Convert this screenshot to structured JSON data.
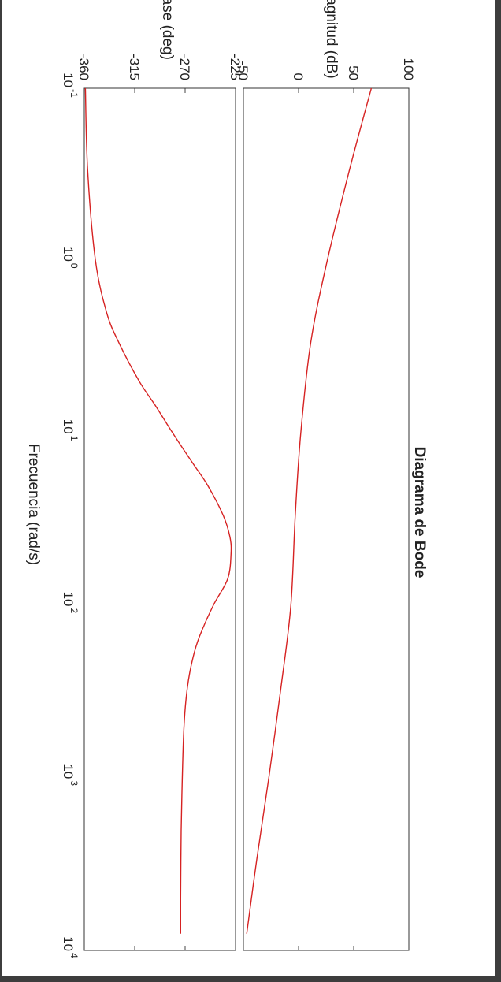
{
  "chart_data": {
    "type": "line",
    "title": "Diagrama de Bode",
    "xlabel": "Frecuencia  (rad/s)",
    "xscale": "log",
    "xlim": [
      0.1,
      10000
    ],
    "xticks": [
      {
        "base": "10",
        "exp": "-1"
      },
      {
        "base": "10",
        "exp": "0"
      },
      {
        "base": "10",
        "exp": "1"
      },
      {
        "base": "10",
        "exp": "2"
      },
      {
        "base": "10",
        "exp": "3"
      },
      {
        "base": "10",
        "exp": "4"
      }
    ],
    "grid": true,
    "line_color": "#d62222",
    "panels": [
      {
        "name": "magnitude",
        "ylabel": "Magnitud (dB)",
        "ylim": [
          -50,
          100
        ],
        "yticks": [
          "-50",
          "0",
          "50",
          "100"
        ],
        "x": [
          0.1,
          0.3,
          1,
          3,
          10,
          30,
          100,
          300,
          1000,
          3000,
          8000
        ],
        "y": [
          66,
          46,
          26,
          11,
          2,
          -3,
          -7,
          -16,
          -27,
          -38,
          -47
        ]
      },
      {
        "name": "phase",
        "ylabel": "Fase (deg)",
        "ylim": [
          -360,
          -225
        ],
        "yticks": [
          "-360",
          "-315",
          "-270",
          "-225"
        ],
        "x": [
          0.1,
          0.3,
          1,
          2,
          3,
          5,
          7,
          10,
          15,
          20,
          30,
          40,
          50,
          70,
          100,
          150,
          200,
          300,
          500,
          1000,
          2000,
          5000,
          8000
        ],
        "y": [
          -359,
          -357,
          -350,
          -340,
          -329,
          -311,
          -296,
          -281,
          -263,
          -250,
          -236,
          -230,
          -229,
          -232,
          -245,
          -257,
          -263,
          -268,
          -271,
          -272.5,
          -273.5,
          -274,
          -274
        ]
      }
    ]
  }
}
